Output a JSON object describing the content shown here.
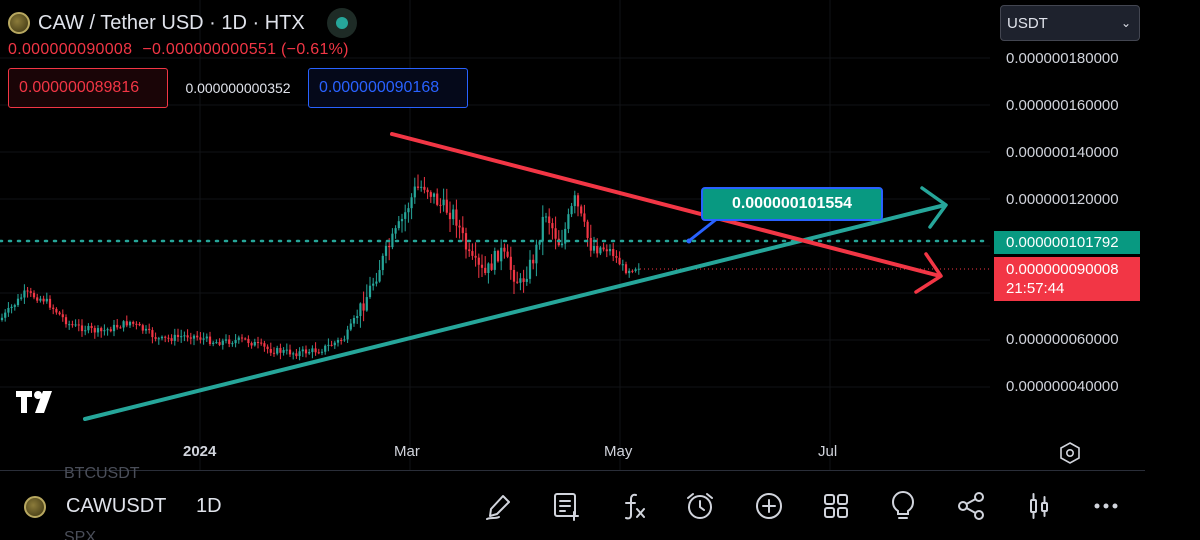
{
  "header": {
    "title": "CAW / Tether USD · 1D · HTX",
    "last_price": "0.000000090008",
    "change": "−0.000000000551 (−0.61%)",
    "sell_price": "0.000000089816",
    "spread": "0.000000000352",
    "buy_price": "0.000000090168"
  },
  "currency_select": {
    "value": "USDT"
  },
  "price_axis": {
    "labels": [
      "0.000000180000",
      "0.000000160000",
      "0.000000140000",
      "0.000000120000",
      "0.000000060000",
      "0.000000040000"
    ],
    "horizontal_line_tag": "0.000000101792",
    "current_price_tag": "0.000000090008",
    "countdown": "21:57:44"
  },
  "time_axis": {
    "labels": [
      "2024",
      "Mar",
      "May",
      "Jul"
    ]
  },
  "annotation": {
    "callout_text": "0.000000101554"
  },
  "bottom_bar": {
    "ghost_symbol_above": "BTCUSDT",
    "symbol": "CAWUSDT",
    "interval": "1D",
    "ghost_symbol_below": "SPX",
    "tools": [
      "pen-icon",
      "notes-icon",
      "indicators-fx-icon",
      "alarm-clock-icon",
      "plus-circle-icon",
      "layout-grid-icon",
      "lightbulb-icon",
      "share-icon",
      "candles-icon",
      "more-icon"
    ]
  },
  "colors": {
    "background": "#000000",
    "bull": "#26a69a",
    "bear": "#f23645",
    "trendline_support": "#26a69a",
    "trendline_resistance": "#f23645",
    "accent_blue": "#2962ff"
  }
}
